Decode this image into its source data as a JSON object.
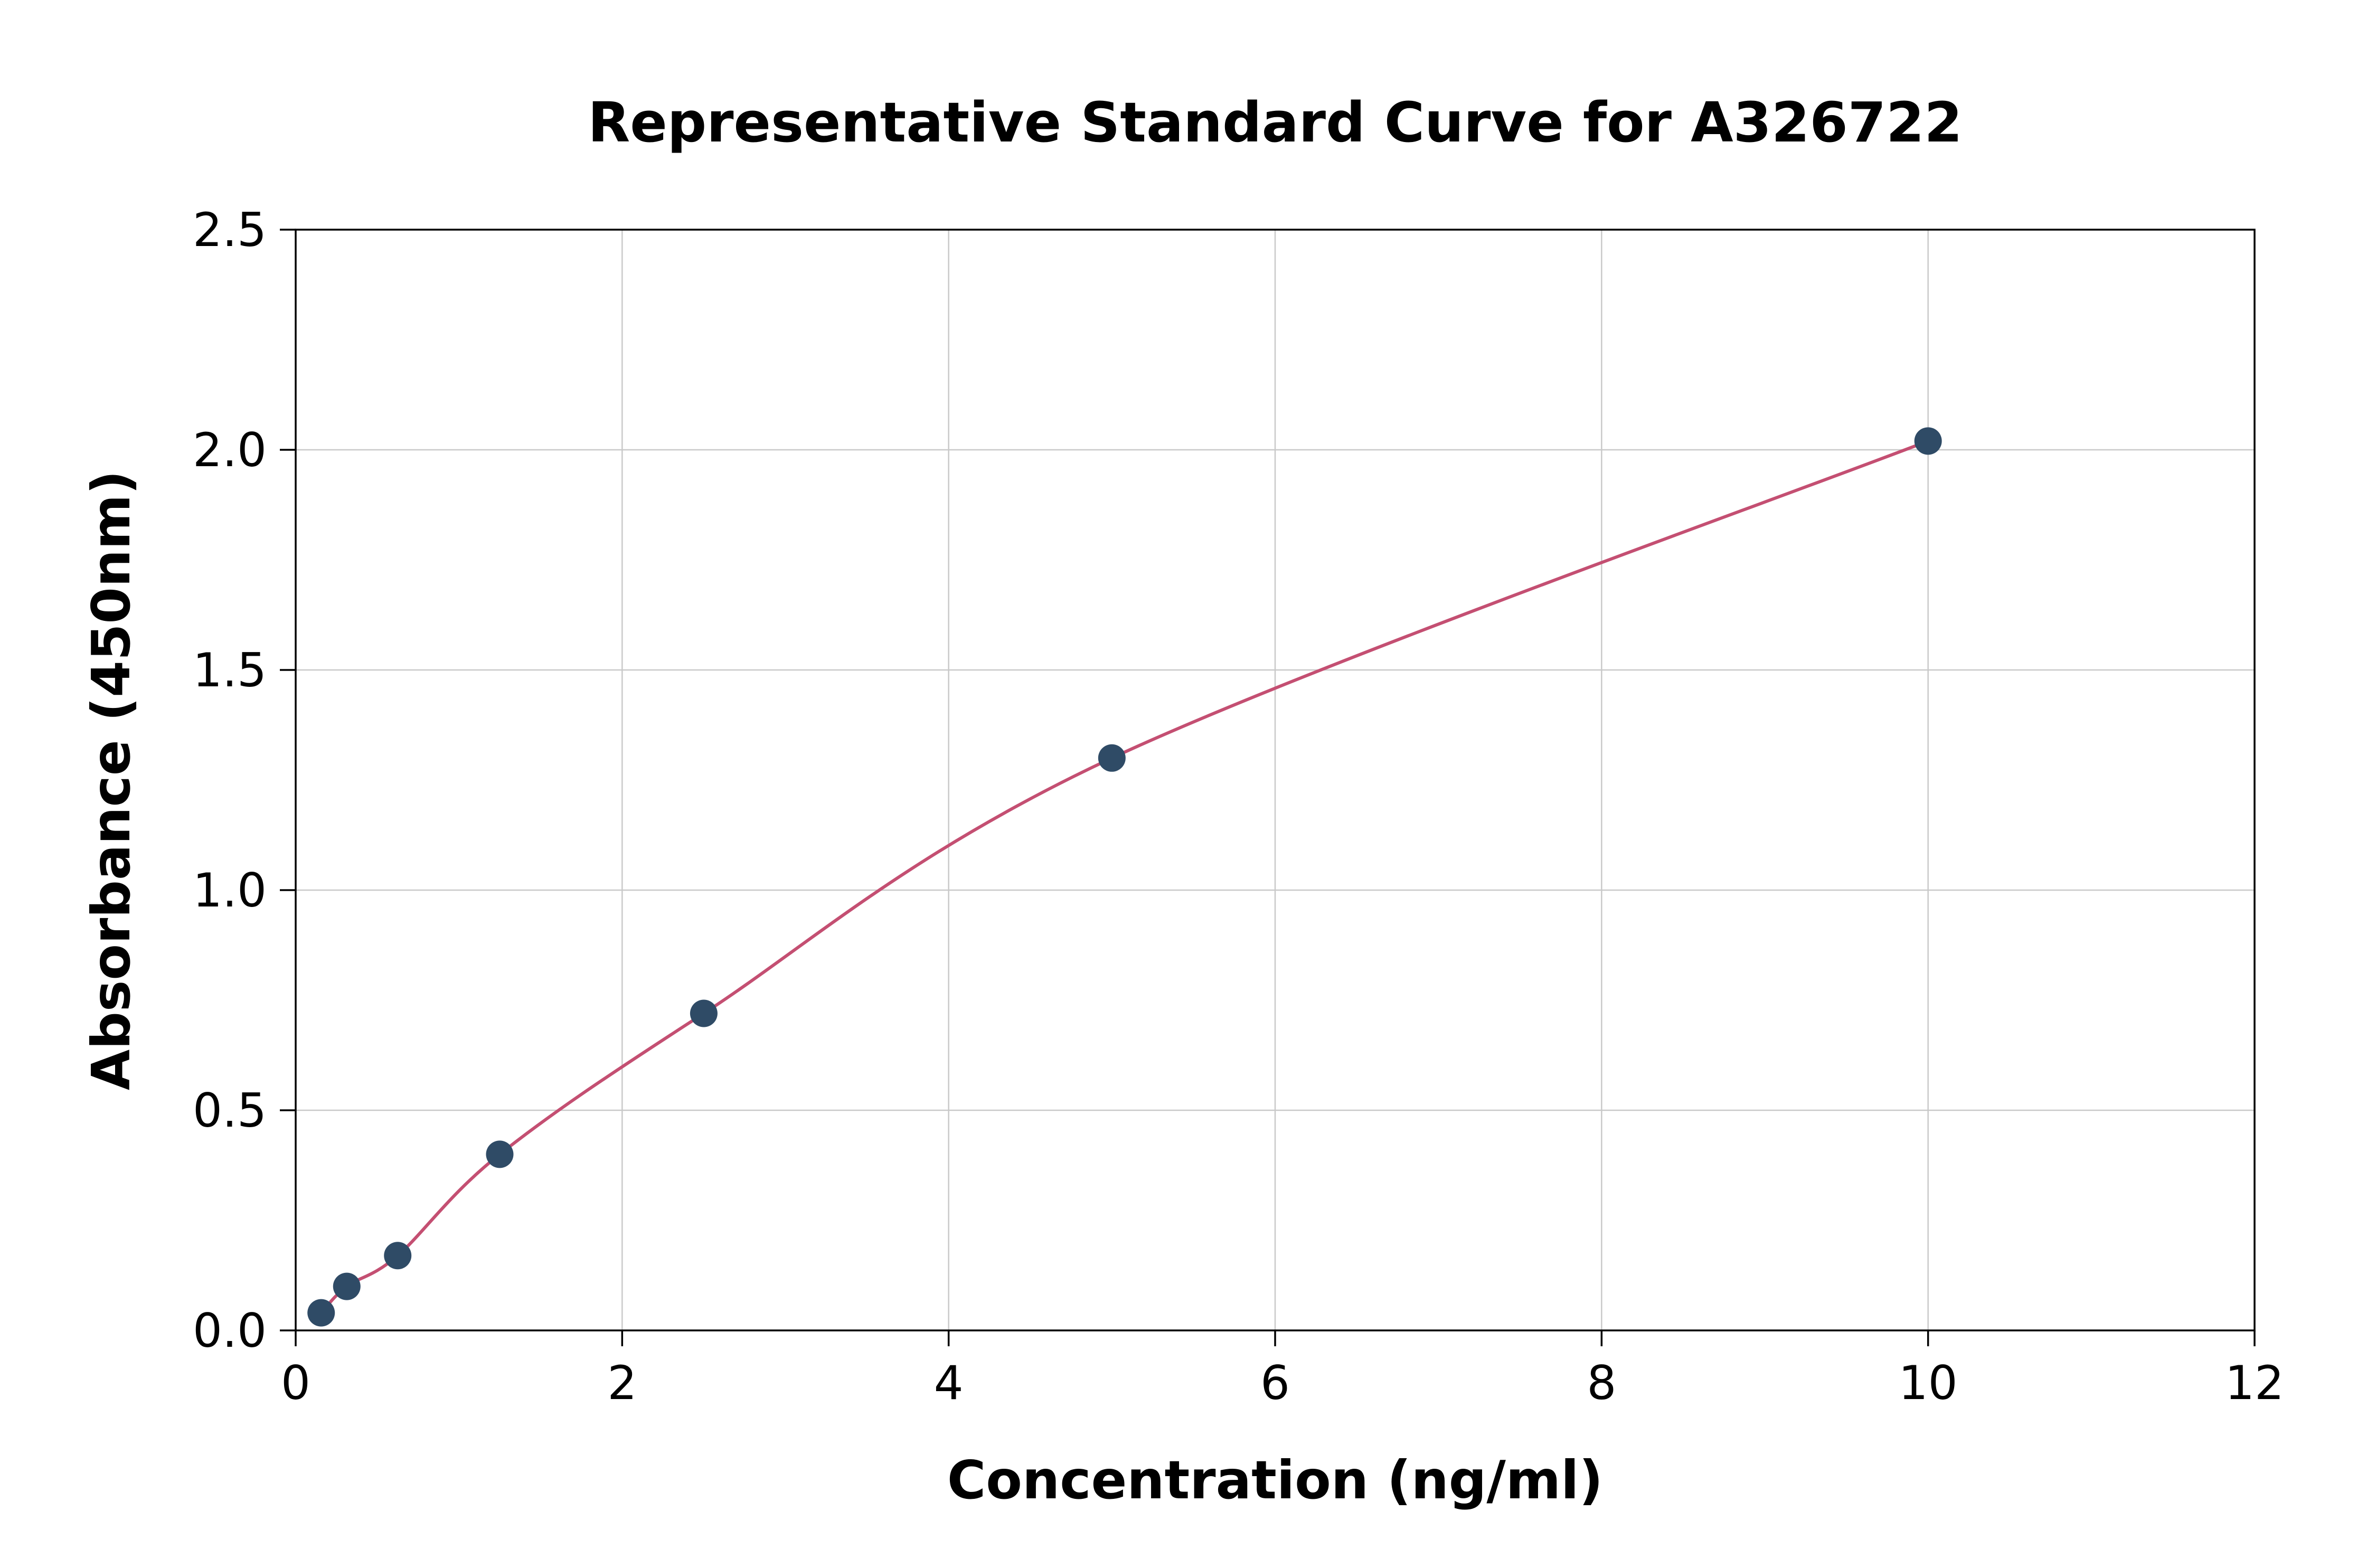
{
  "chart_data": {
    "type": "scatter",
    "title": "Representative Standard Curve for A326722",
    "xlabel": "Concentration (ng/ml)",
    "ylabel": "Absorbance (450nm)",
    "xlim": [
      0,
      12
    ],
    "ylim": [
      0,
      2.5
    ],
    "x_ticks": [
      0,
      2,
      4,
      6,
      8,
      10,
      12
    ],
    "x_tick_labels": [
      "0",
      "2",
      "4",
      "6",
      "8",
      "10",
      "12"
    ],
    "y_ticks": [
      0,
      0.5,
      1.0,
      1.5,
      2.0,
      2.5
    ],
    "y_tick_labels": [
      "0.0",
      "0.5",
      "1.0",
      "1.5",
      "2.0",
      "2.5"
    ],
    "grid": true,
    "legend": "none",
    "points": [
      {
        "x": 0.156,
        "y": 0.04
      },
      {
        "x": 0.313,
        "y": 0.1
      },
      {
        "x": 0.625,
        "y": 0.17
      },
      {
        "x": 1.25,
        "y": 0.4
      },
      {
        "x": 2.5,
        "y": 0.72
      },
      {
        "x": 5.0,
        "y": 1.3
      },
      {
        "x": 10.0,
        "y": 2.02
      }
    ],
    "colors": {
      "curve": "#c44f72",
      "marker": "#2f4b66",
      "grid": "#c9c9c9",
      "axis": "#000000",
      "background": "#ffffff"
    }
  }
}
